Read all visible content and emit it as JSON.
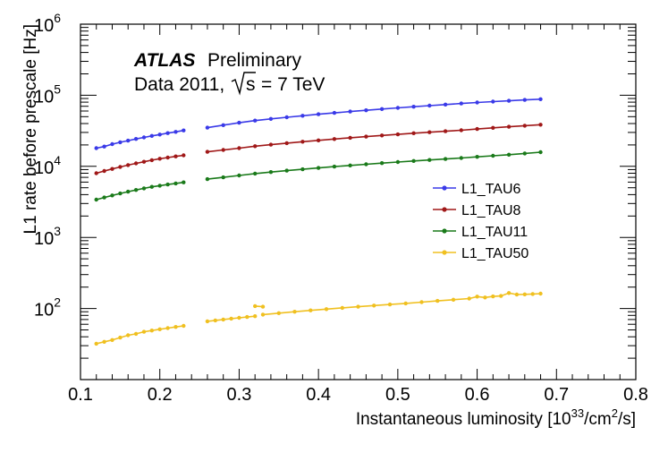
{
  "chart_data": {
    "type": "line",
    "title": "",
    "xlabel": "Instantaneous luminosity [10",
    "xlabel_exponent": "33",
    "xlabel_unit": "/cm",
    "xlabel_unit_exponent": "2",
    "xlabel_end": "/s]",
    "ylabel": "L1 rate before prescale [Hz]",
    "xlim": [
      0.1,
      0.8
    ],
    "ylim": [
      10,
      1000000
    ],
    "yscale": "log",
    "grid": false,
    "legend_position": "right-middle",
    "x_ticks": [
      "0.1",
      "0.2",
      "0.3",
      "0.4",
      "0.5",
      "0.6",
      "0.7",
      "0.8"
    ],
    "y_ticks": [
      {
        "base": "10",
        "exp": "2",
        "value": 100
      },
      {
        "base": "10",
        "exp": "3",
        "value": 1000
      },
      {
        "base": "10",
        "exp": "4",
        "value": 10000
      },
      {
        "base": "10",
        "exp": "5",
        "value": 100000
      },
      {
        "base": "10",
        "exp": "6",
        "value": 1000000
      }
    ],
    "annotations": {
      "experiment": "ATLAS",
      "status": "Preliminary",
      "dataset": "Data 2011,",
      "sqrt_s": "s",
      "energy": "= 7 TeV"
    },
    "series": [
      {
        "name": "L1_TAU6",
        "color": "#3a3ae8",
        "segments": [
          {
            "x": [
              0.12,
              0.13,
              0.14,
              0.15,
              0.16,
              0.17,
              0.18,
              0.19,
              0.2,
              0.21,
              0.22,
              0.23
            ],
            "y": [
              18000,
              19000,
              20500,
              21800,
              23000,
              24300,
              25500,
              26800,
              28000,
              29300,
              30500,
              32000
            ]
          },
          {
            "x": [
              0.26,
              0.28,
              0.3,
              0.32,
              0.34,
              0.36,
              0.38,
              0.4,
              0.42,
              0.44,
              0.46,
              0.48,
              0.5,
              0.52,
              0.54,
              0.56,
              0.58,
              0.6,
              0.62,
              0.64,
              0.66,
              0.68
            ],
            "y": [
              35000,
              38000,
              41000,
              44000,
              46500,
              49000,
              51500,
              54000,
              56500,
              59000,
              61500,
              64000,
              66500,
              69000,
              71500,
              74000,
              76500,
              79000,
              81500,
              83500,
              86000,
              88000
            ]
          }
        ]
      },
      {
        "name": "L1_TAU8",
        "color": "#a01818",
        "segments": [
          {
            "x": [
              0.12,
              0.13,
              0.14,
              0.15,
              0.16,
              0.17,
              0.18,
              0.19,
              0.2,
              0.21,
              0.22,
              0.23
            ],
            "y": [
              8000,
              8600,
              9200,
              9800,
              10400,
              11000,
              11600,
              12200,
              12800,
              13300,
              13800,
              14300
            ]
          },
          {
            "x": [
              0.26,
              0.28,
              0.3,
              0.32,
              0.34,
              0.36,
              0.38,
              0.4,
              0.42,
              0.44,
              0.46,
              0.48,
              0.5,
              0.52,
              0.54,
              0.56,
              0.58,
              0.6,
              0.62,
              0.64,
              0.66,
              0.68
            ],
            "y": [
              16000,
              17000,
              18000,
              19200,
              20200,
              21200,
              22200,
              23200,
              24200,
              25200,
              26200,
              27200,
              28200,
              29200,
              30200,
              31200,
              32200,
              33500,
              34800,
              36000,
              37300,
              38500
            ]
          }
        ]
      },
      {
        "name": "L1_TAU11",
        "color": "#1a7a1a",
        "segments": [
          {
            "x": [
              0.12,
              0.13,
              0.14,
              0.15,
              0.16,
              0.17,
              0.18,
              0.19,
              0.2,
              0.21,
              0.22,
              0.23
            ],
            "y": [
              3400,
              3650,
              3900,
              4150,
              4400,
              4650,
              4900,
              5150,
              5350,
              5550,
              5750,
              5950
            ]
          },
          {
            "x": [
              0.26,
              0.28,
              0.3,
              0.32,
              0.34,
              0.36,
              0.38,
              0.4,
              0.42,
              0.44,
              0.46,
              0.48,
              0.5,
              0.52,
              0.54,
              0.56,
              0.58,
              0.6,
              0.62,
              0.64,
              0.66,
              0.68
            ],
            "y": [
              6600,
              7000,
              7450,
              7900,
              8300,
              8700,
              9100,
              9500,
              9900,
              10300,
              10700,
              11100,
              11500,
              11900,
              12300,
              12700,
              13100,
              13600,
              14100,
              14600,
              15200,
              15800
            ]
          }
        ]
      },
      {
        "name": "L1_TAU50",
        "color": "#f0c020",
        "segments": [
          {
            "x": [
              0.12,
              0.13,
              0.14,
              0.15,
              0.16,
              0.17,
              0.18,
              0.19,
              0.2,
              0.21,
              0.22,
              0.23
            ],
            "y": [
              32,
              34,
              36,
              39,
              42,
              44,
              47,
              49,
              51,
              53,
              55,
              57
            ]
          },
          {
            "x": [
              0.26,
              0.27,
              0.28,
              0.29,
              0.3,
              0.31,
              0.32
            ],
            "y": [
              66,
              68,
              70,
              72,
              74,
              76,
              78
            ]
          },
          {
            "x": [
              0.32,
              0.33
            ],
            "y": [
              108,
              106
            ]
          },
          {
            "x": [
              0.33,
              0.35,
              0.37,
              0.39,
              0.41,
              0.43,
              0.45,
              0.47,
              0.49,
              0.51,
              0.53,
              0.55,
              0.57,
              0.59,
              0.6,
              0.61,
              0.62,
              0.63,
              0.64,
              0.65,
              0.66,
              0.67,
              0.68
            ],
            "y": [
              82,
              86,
              90,
              94,
              98,
              102,
              106,
              110,
              114,
              118,
              123,
              128,
              133,
              138,
              147,
              143,
              148,
              150,
              165,
              157,
              158,
              160,
              162
            ]
          }
        ]
      }
    ]
  }
}
